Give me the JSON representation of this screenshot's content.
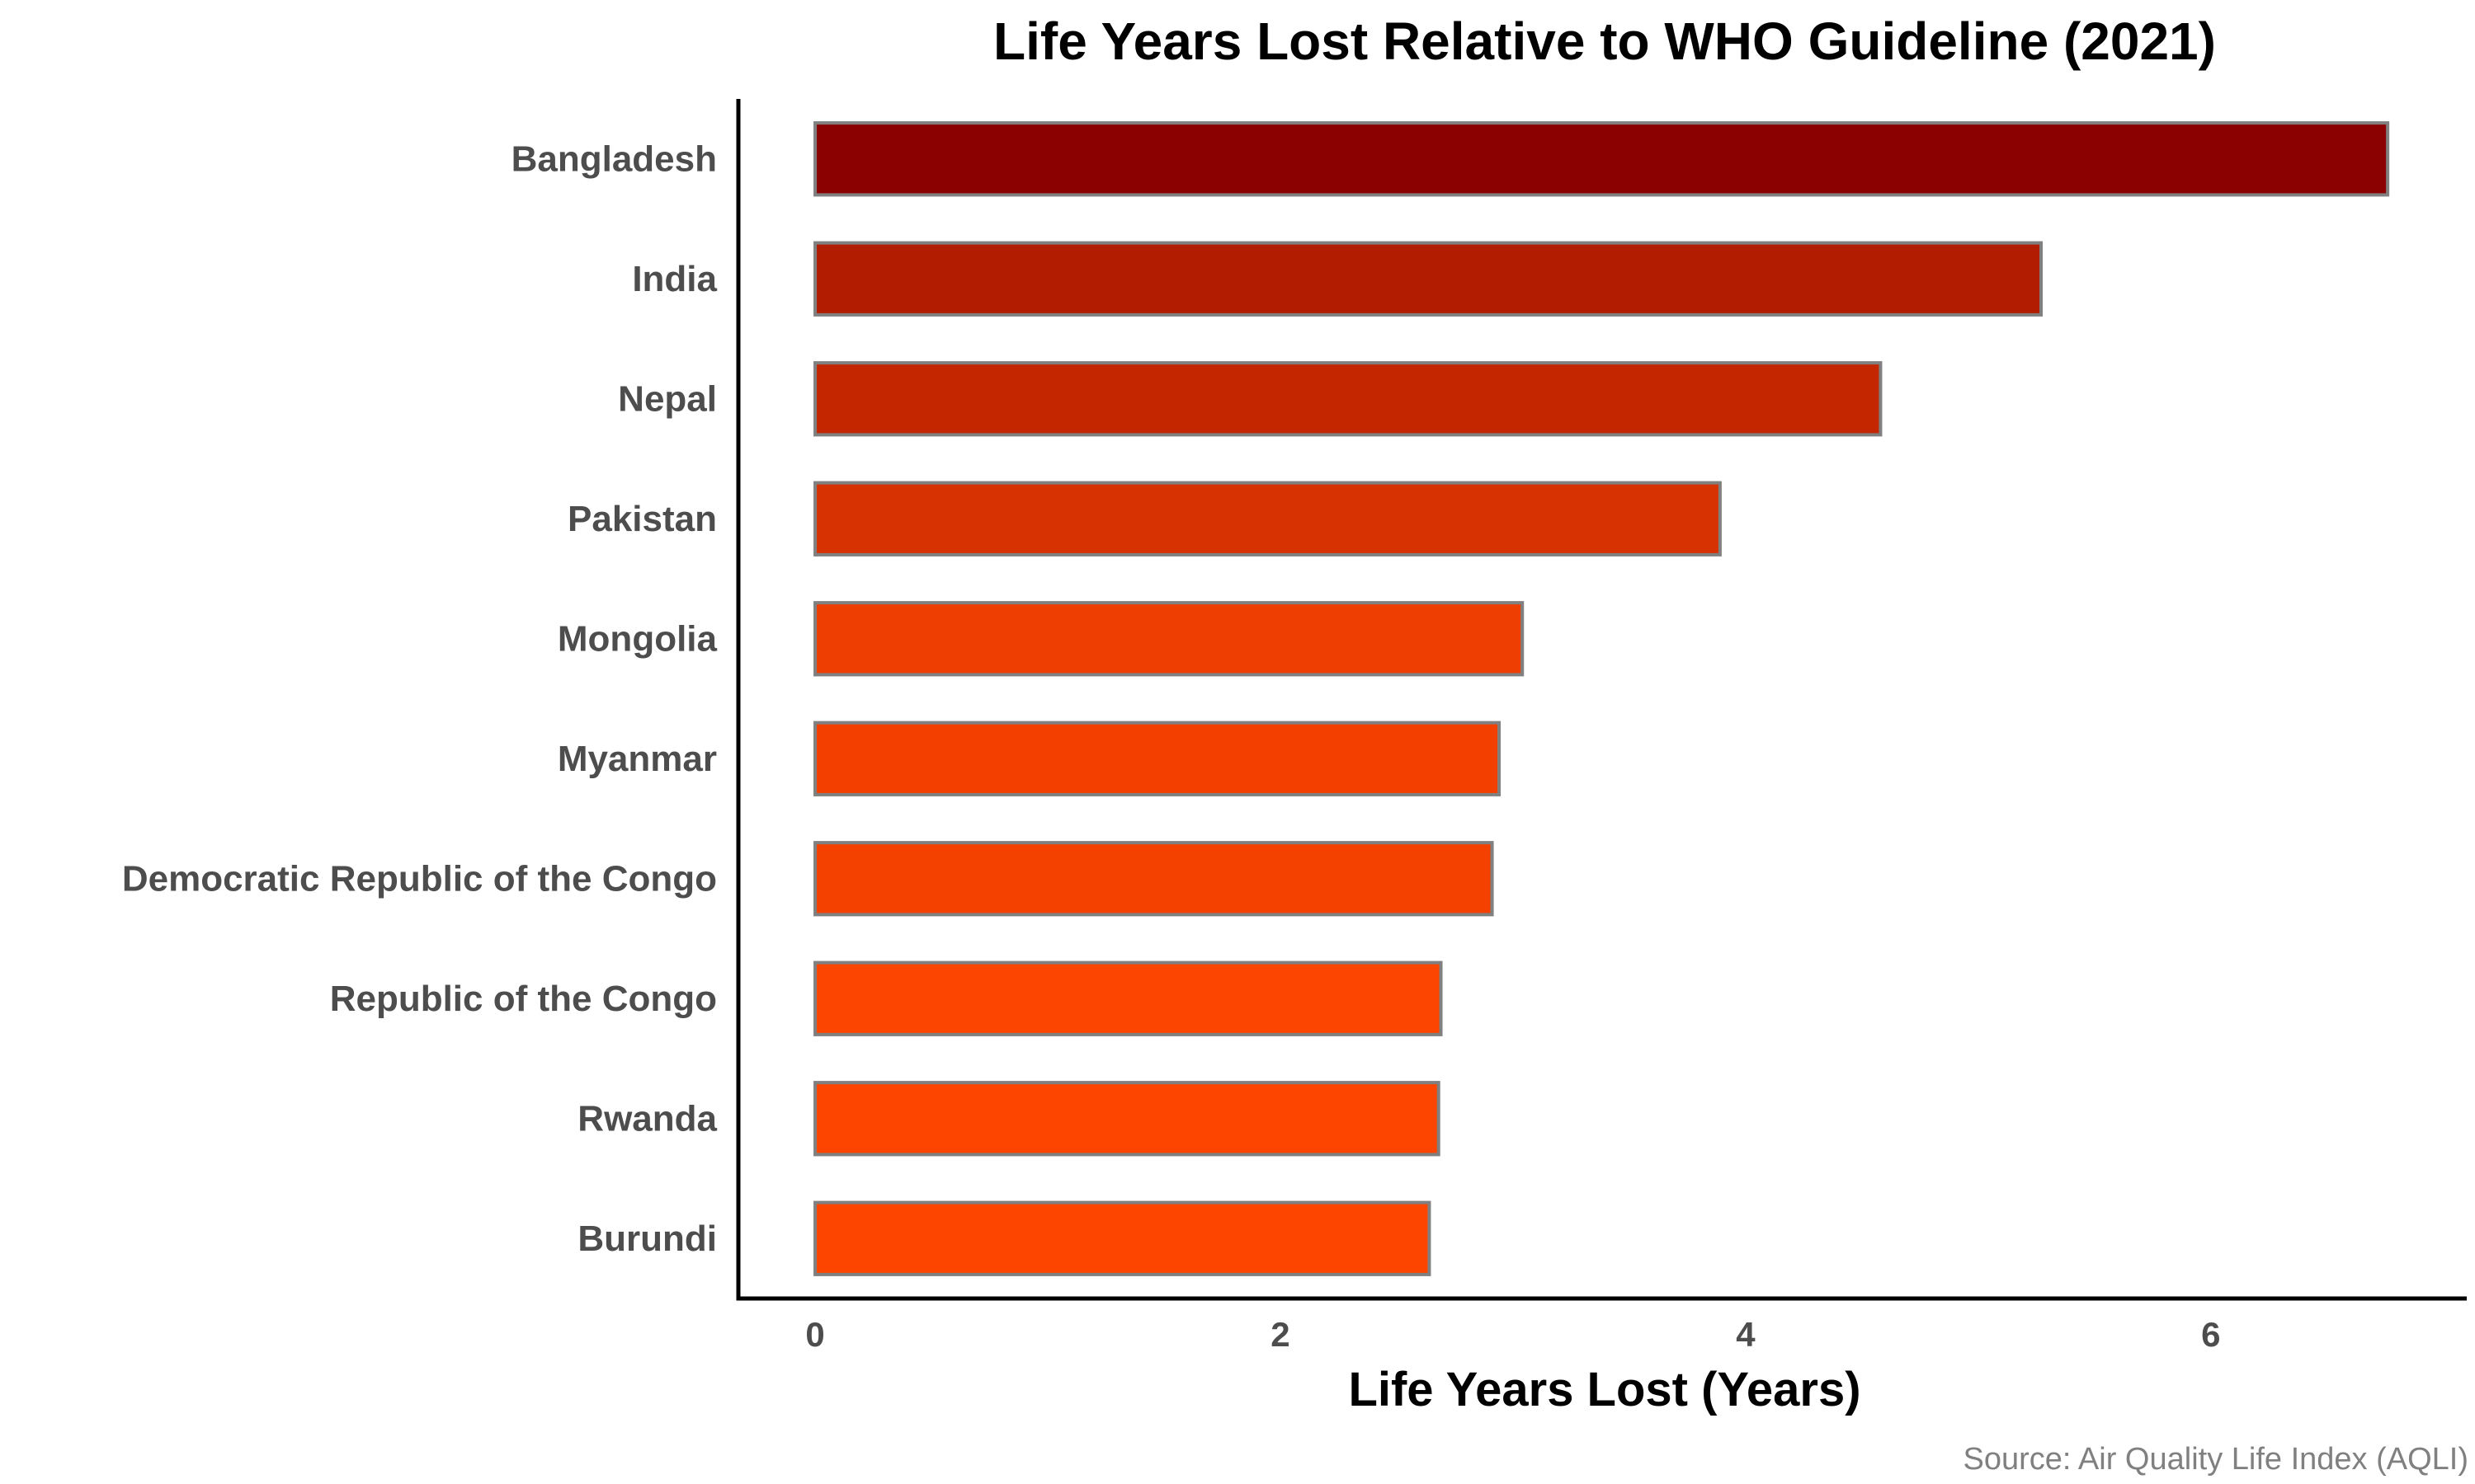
{
  "chart_data": {
    "type": "bar",
    "orientation": "horizontal",
    "title": "Life Years Lost Relative to WHO Guideline (2021)",
    "xlabel": "Life Years Lost (Years)",
    "ylabel": "",
    "caption": "Source: Air Quality Life Index (AQLI)",
    "xlim": [
      -0.33,
      7.1
    ],
    "xticks": [
      0,
      2,
      4,
      6
    ],
    "xtick_labels": [
      "0",
      "2",
      "4",
      "6"
    ],
    "grid": false,
    "legend": "none",
    "categories": [
      "Bangladesh",
      "India",
      "Nepal",
      "Pakistan",
      "Mongolia",
      "Myanmar",
      "Democratic Republic of the Congo",
      "Republic of the Congo",
      "Rwanda",
      "Burundi"
    ],
    "values": [
      6.76,
      5.27,
      4.58,
      3.89,
      3.04,
      2.94,
      2.91,
      2.69,
      2.68,
      2.64
    ],
    "colors": [
      "#8b0000",
      "#b21c00",
      "#c42600",
      "#d73202",
      "#ef3e02",
      "#f33f00",
      "#f54100",
      "#fc4500",
      "#fd4500",
      "#fe4500"
    ],
    "bar_outline_color": "#808080"
  }
}
